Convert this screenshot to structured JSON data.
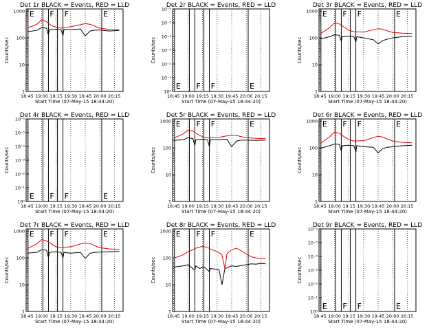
{
  "chart_data": [
    {
      "type": "line",
      "title": "Det 1r BLACK = Events, RED = LLD",
      "xlabel": "Start Time (07-May-15 18:44:20)",
      "ylabel": "Counts/sec",
      "x_ticks": [
        "18:45",
        "19:00",
        "19:15",
        "19:30",
        "19:45",
        "20:00",
        "20:15"
      ],
      "y_ticks": [
        "1",
        "10",
        "100",
        "1000"
      ],
      "ylim": [
        1,
        1200
      ],
      "y_scale": "log",
      "markers": [
        {
          "label": "E",
          "time": "18:46"
        },
        {
          "label": "F",
          "time": "19:07"
        },
        {
          "label": "F",
          "time": "19:22"
        },
        {
          "label": "E",
          "time": "20:02"
        }
      ],
      "series": [
        {
          "color": "#000000",
          "x": [
            "18:45",
            "18:55",
            "19:00",
            "19:05",
            "19:07",
            "19:08",
            "19:15",
            "19:20",
            "19:22",
            "19:23",
            "19:30",
            "19:40",
            "19:45",
            "19:50",
            "19:55",
            "20:00",
            "20:10",
            "20:20"
          ],
          "values": [
            170,
            190,
            240,
            230,
            130,
            200,
            210,
            200,
            120,
            210,
            200,
            215,
            120,
            180,
            195,
            195,
            180,
            190
          ]
        },
        {
          "color": "#e00000",
          "x": [
            "18:45",
            "18:55",
            "19:00",
            "19:05",
            "19:10",
            "19:15",
            "19:20",
            "19:30",
            "19:40",
            "19:45",
            "19:50",
            "19:55",
            "20:00",
            "20:10",
            "20:20"
          ],
          "values": [
            230,
            320,
            470,
            400,
            290,
            250,
            230,
            260,
            310,
            340,
            320,
            270,
            230,
            205,
            200
          ]
        }
      ]
    },
    {
      "type": "line",
      "title": "Det 2r BLACK = Events, RED = LLD",
      "xlabel": "Start Time (07-May-15 18:44:20)",
      "ylabel": "Counts/sec",
      "x_ticks": [
        "18:45",
        "19:00",
        "19:15",
        "19:30",
        "19:45",
        "20:00",
        "20:15"
      ],
      "y_ticks": [
        "10⁰",
        "10⁻¹",
        "10⁻²",
        "10⁻³",
        "10⁻⁴",
        "10⁻⁵",
        "10⁻⁶"
      ],
      "markers": [
        {
          "label": "E",
          "time": "18:46"
        },
        {
          "label": "F",
          "time": "19:07"
        },
        {
          "label": "F",
          "time": "19:22"
        },
        {
          "label": "E",
          "time": "20:02"
        }
      ],
      "series": []
    },
    {
      "type": "line",
      "title": "Det 3r BLACK = Events, RED = LLD",
      "xlabel": "Start Time (07-May-15 18:44:20)",
      "ylabel": "Counts/sec",
      "x_ticks": [
        "18:45",
        "19:00",
        "19:15",
        "19:30",
        "19:45",
        "20:00",
        "20:15"
      ],
      "y_ticks": [
        "1",
        "10",
        "100",
        "1000"
      ],
      "ylim": [
        1,
        1200
      ],
      "y_scale": "log",
      "markers": [
        {
          "label": "E",
          "time": "18:46"
        },
        {
          "label": "F",
          "time": "19:07"
        },
        {
          "label": "F",
          "time": "19:22"
        },
        {
          "label": "E",
          "time": "20:02"
        }
      ],
      "series": [
        {
          "color": "#000000",
          "x": [
            "18:45",
            "18:55",
            "19:00",
            "19:05",
            "19:07",
            "19:08",
            "19:15",
            "19:20",
            "19:22",
            "19:23",
            "19:30",
            "19:40",
            "19:45",
            "19:50",
            "19:55",
            "20:00",
            "20:10",
            "20:20"
          ],
          "values": [
            90,
            110,
            130,
            125,
            75,
            110,
            115,
            110,
            70,
            110,
            100,
            85,
            60,
            80,
            90,
            100,
            110,
            115
          ]
        },
        {
          "color": "#e00000",
          "x": [
            "18:45",
            "18:55",
            "19:00",
            "19:05",
            "19:10",
            "19:15",
            "19:20",
            "19:30",
            "19:40",
            "19:45",
            "19:50",
            "19:55",
            "20:00",
            "20:10",
            "20:20"
          ],
          "values": [
            140,
            240,
            360,
            330,
            250,
            190,
            170,
            165,
            200,
            220,
            210,
            180,
            160,
            150,
            145
          ]
        }
      ]
    },
    {
      "type": "line",
      "title": "Det 4r BLACK = Events, RED = LLD",
      "xlabel": "Start Time (07-May-15 18:44:20)",
      "ylabel": "Counts/sec",
      "x_ticks": [
        "18:45",
        "19:00",
        "19:15",
        "19:30",
        "19:45",
        "20:00",
        "20:15"
      ],
      "y_ticks": [
        "10⁰",
        "10⁻¹",
        "10⁻²",
        "10⁻³",
        "10⁻⁴",
        "10⁻⁵",
        "10⁻⁶"
      ],
      "markers": [
        {
          "label": "E",
          "time": "18:46"
        },
        {
          "label": "F",
          "time": "19:07"
        },
        {
          "label": "F",
          "time": "19:22"
        },
        {
          "label": "E",
          "time": "20:02"
        }
      ],
      "series": []
    },
    {
      "type": "line",
      "title": "Det 5r BLACK = Events, RED = LLD",
      "xlabel": "Start Time (07-May-15 18:44:20)",
      "ylabel": "Counts/sec",
      "x_ticks": [
        "18:45",
        "19:00",
        "19:15",
        "19:30",
        "19:45",
        "20:00",
        "20:15"
      ],
      "y_ticks": [
        "1",
        "10",
        "100",
        "1000"
      ],
      "ylim": [
        1,
        1200
      ],
      "y_scale": "log",
      "markers": [
        {
          "label": "E",
          "time": "18:46"
        },
        {
          "label": "F",
          "time": "19:07"
        },
        {
          "label": "F",
          "time": "19:22"
        },
        {
          "label": "E",
          "time": "20:02"
        }
      ],
      "series": [
        {
          "color": "#000000",
          "x": [
            "18:45",
            "18:55",
            "19:00",
            "19:05",
            "19:07",
            "19:08",
            "19:15",
            "19:20",
            "19:22",
            "19:23",
            "19:30",
            "19:40",
            "19:45",
            "19:50",
            "19:55",
            "20:00",
            "20:10",
            "20:20"
          ],
          "values": [
            190,
            200,
            240,
            220,
            120,
            200,
            210,
            200,
            110,
            205,
            200,
            210,
            110,
            180,
            195,
            195,
            190,
            195
          ]
        },
        {
          "color": "#e00000",
          "x": [
            "18:45",
            "18:55",
            "19:00",
            "19:05",
            "19:10",
            "19:15",
            "19:20",
            "19:30",
            "19:40",
            "19:45",
            "19:50",
            "19:55",
            "20:00",
            "20:10",
            "20:20"
          ],
          "values": [
            230,
            330,
            460,
            420,
            320,
            260,
            235,
            240,
            280,
            300,
            290,
            260,
            240,
            225,
            220
          ]
        }
      ]
    },
    {
      "type": "line",
      "title": "Det 6r BLACK = Events, RED = LLD",
      "xlabel": "Start Time (07-May-15 18:44:20)",
      "ylabel": "Counts/sec",
      "x_ticks": [
        "18:45",
        "19:00",
        "19:15",
        "19:30",
        "19:45",
        "20:00",
        "20:15"
      ],
      "y_ticks": [
        "1",
        "10",
        "100",
        "1000"
      ],
      "ylim": [
        1,
        1200
      ],
      "y_scale": "log",
      "markers": [
        {
          "label": "E",
          "time": "18:46"
        },
        {
          "label": "F",
          "time": "19:07"
        },
        {
          "label": "F",
          "time": "19:22"
        },
        {
          "label": "E",
          "time": "20:02"
        }
      ],
      "series": [
        {
          "color": "#000000",
          "x": [
            "18:45",
            "18:55",
            "19:00",
            "19:05",
            "19:07",
            "19:08",
            "19:15",
            "19:20",
            "19:22",
            "19:23",
            "19:30",
            "19:40",
            "19:45",
            "19:50",
            "19:55",
            "20:00",
            "20:10",
            "20:20"
          ],
          "values": [
            95,
            120,
            140,
            135,
            75,
            120,
            125,
            120,
            70,
            120,
            110,
            105,
            65,
            95,
            105,
            110,
            120,
            125
          ]
        },
        {
          "color": "#e00000",
          "x": [
            "18:45",
            "18:55",
            "19:00",
            "19:05",
            "19:10",
            "19:15",
            "19:20",
            "19:30",
            "19:40",
            "19:45",
            "19:50",
            "19:55",
            "20:00",
            "20:10",
            "20:20"
          ],
          "values": [
            140,
            260,
            390,
            350,
            260,
            200,
            180,
            185,
            240,
            270,
            250,
            210,
            180,
            160,
            155
          ]
        }
      ]
    },
    {
      "type": "line",
      "title": "Det 7r BLACK = Events, RED = LLD",
      "xlabel": "Start Time (07-May-15 18:44:20)",
      "ylabel": "Counts/sec",
      "x_ticks": [
        "18:45",
        "19:00",
        "19:15",
        "19:30",
        "19:45",
        "20:00",
        "20:15"
      ],
      "y_ticks": [
        "1",
        "10",
        "100",
        "1000"
      ],
      "ylim": [
        1,
        1200
      ],
      "y_scale": "log",
      "markers": [
        {
          "label": "E",
          "time": "18:46"
        },
        {
          "label": "F",
          "time": "19:07"
        },
        {
          "label": "F",
          "time": "19:22"
        },
        {
          "label": "E",
          "time": "20:02"
        }
      ],
      "series": [
        {
          "color": "#000000",
          "x": [
            "18:45",
            "18:55",
            "19:00",
            "19:05",
            "19:07",
            "19:08",
            "19:15",
            "19:20",
            "19:22",
            "19:23",
            "19:30",
            "19:40",
            "19:45",
            "19:50",
            "19:55",
            "20:00",
            "20:10",
            "20:20"
          ],
          "values": [
            150,
            160,
            200,
            195,
            105,
            160,
            170,
            160,
            100,
            160,
            150,
            160,
            95,
            150,
            160,
            165,
            170,
            175
          ]
        },
        {
          "color": "#e00000",
          "x": [
            "18:45",
            "18:55",
            "19:00",
            "19:05",
            "19:10",
            "19:15",
            "19:20",
            "19:30",
            "19:40",
            "19:45",
            "19:50",
            "19:55",
            "20:00",
            "20:10",
            "20:20"
          ],
          "values": [
            220,
            330,
            480,
            430,
            330,
            260,
            240,
            260,
            330,
            360,
            340,
            280,
            240,
            215,
            210
          ]
        }
      ]
    },
    {
      "type": "line",
      "title": "Det 8r BLACK = Events, RED = LLD",
      "xlabel": "Start Time (07-May-15 18:44:20)",
      "ylabel": "Counts/sec",
      "x_ticks": [
        "18:45",
        "19:00",
        "19:15",
        "19:30",
        "19:45",
        "20:00",
        "20:15"
      ],
      "y_ticks": [
        "1",
        "10",
        "100",
        "1000"
      ],
      "ylim": [
        1,
        1200
      ],
      "y_scale": "log",
      "markers": [
        {
          "label": "E",
          "time": "18:46"
        },
        {
          "label": "F",
          "time": "19:07"
        },
        {
          "label": "F",
          "time": "19:22"
        },
        {
          "label": "E",
          "time": "20:02"
        }
      ],
      "series": [
        {
          "color": "#000000",
          "x": [
            "18:45",
            "18:50",
            "18:55",
            "19:00",
            "19:03",
            "19:07",
            "19:08",
            "19:12",
            "19:15",
            "19:18",
            "19:22",
            "19:23",
            "19:28",
            "19:32",
            "19:35",
            "19:38",
            "19:40",
            "19:42",
            "19:45",
            "19:50",
            "19:55",
            "20:00",
            "20:05",
            "20:10",
            "20:15",
            "20:20"
          ],
          "values": [
            45,
            48,
            50,
            55,
            45,
            35,
            50,
            40,
            45,
            42,
            30,
            40,
            38,
            35,
            10,
            40,
            42,
            45,
            50,
            48,
            52,
            55,
            60,
            58,
            62,
            60
          ]
        },
        {
          "color": "#e00000",
          "x": [
            "18:45",
            "18:50",
            "18:55",
            "19:00",
            "19:05",
            "19:08",
            "19:12",
            "19:15",
            "19:20",
            "19:25",
            "19:30",
            "19:35",
            "19:38",
            "19:40",
            "19:45",
            "19:50",
            "19:55",
            "20:00",
            "20:05",
            "20:10",
            "20:15",
            "20:20"
          ],
          "values": [
            100,
            110,
            130,
            170,
            200,
            230,
            250,
            270,
            240,
            200,
            170,
            130,
            40,
            140,
            200,
            230,
            180,
            140,
            110,
            100,
            95,
            95
          ]
        }
      ]
    },
    {
      "type": "line",
      "title": "Det 9r BLACK = Events, RED = LLD",
      "xlabel": "Start Time (07-May-15 18:44:20)",
      "ylabel": "Counts/sec",
      "x_ticks": [
        "18:45",
        "19:00",
        "19:15",
        "19:30",
        "19:45",
        "20:00",
        "20:15"
      ],
      "y_ticks": [
        "10⁰",
        "10⁻¹",
        "10⁻²",
        "10⁻³",
        "10⁻⁴",
        "10⁻⁵",
        "10⁻⁶"
      ],
      "markers": [
        {
          "label": "E",
          "time": "18:46"
        },
        {
          "label": "F",
          "time": "19:07"
        },
        {
          "label": "F",
          "time": "19:22"
        },
        {
          "label": "E",
          "time": "20:02"
        }
      ],
      "series": []
    }
  ]
}
